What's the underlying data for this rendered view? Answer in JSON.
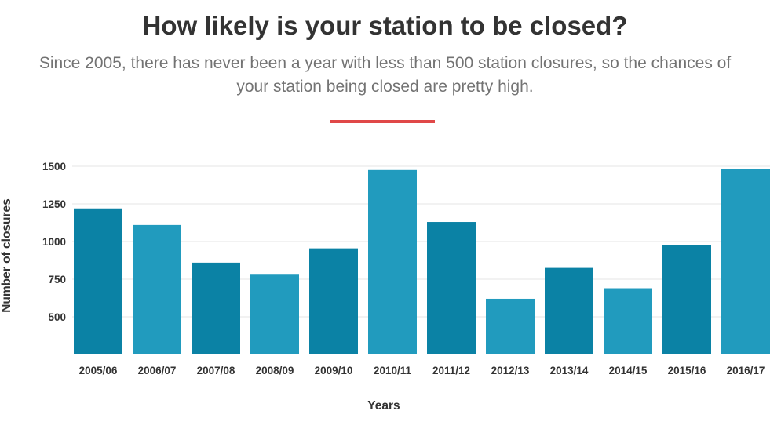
{
  "header": {
    "title": "How likely is your station to be closed?",
    "subtitle": "Since 2005, there has never been a year with less than 500 station closures, so the chances of your station being closed are pretty high."
  },
  "colors": {
    "divider": "#e04848",
    "bar_dark": "#0b82a5",
    "bar_light": "#219bbe",
    "grid": "#e6e6e6"
  },
  "chart_data": {
    "type": "bar",
    "title": "How likely is your station to be closed?",
    "subtitle": "Since 2005, there has never been a year with less than 500 station closures, so the chances of your station being closed are pretty high.",
    "xlabel": "Years",
    "ylabel": "Number of closures",
    "categories": [
      "2005/06",
      "2006/07",
      "2007/08",
      "2008/09",
      "2009/10",
      "2010/11",
      "2011/12",
      "2012/13",
      "2013/14",
      "2014/15",
      "2015/16",
      "2016/17"
    ],
    "values": [
      1220,
      1110,
      860,
      780,
      955,
      1475,
      1130,
      620,
      825,
      690,
      975,
      1480
    ],
    "bar_colors": [
      "#0b82a5",
      "#219bbe",
      "#0b82a5",
      "#219bbe",
      "#0b82a5",
      "#219bbe",
      "#0b82a5",
      "#219bbe",
      "#0b82a5",
      "#219bbe",
      "#0b82a5",
      "#219bbe"
    ],
    "yticks": [
      500,
      750,
      1000,
      1250,
      1500
    ],
    "ytick_labels": [
      "500",
      "750",
      "1000",
      "1250",
      "1500"
    ],
    "ylim": [
      250,
      1500
    ],
    "grid": true,
    "legend": "none"
  }
}
